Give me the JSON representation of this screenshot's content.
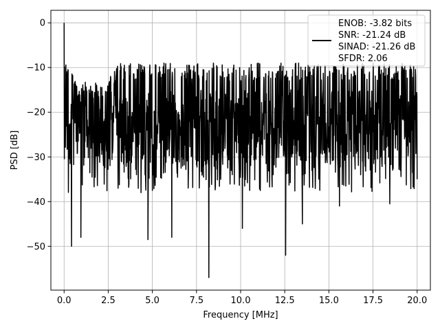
{
  "chart_data": {
    "type": "line",
    "title": "",
    "xlabel": "Frequency [MHz]",
    "ylabel": "PSD [dB]",
    "xlim": [
      -0.75,
      20.75
    ],
    "ylim": [
      -59.8,
      2.8
    ],
    "xticks": [
      0.0,
      2.5,
      5.0,
      7.5,
      10.0,
      12.5,
      15.0,
      17.5,
      20.0
    ],
    "xtick_labels": [
      "0.0",
      "2.5",
      "5.0",
      "7.5",
      "10.0",
      "12.5",
      "15.0",
      "17.5",
      "20.0"
    ],
    "yticks": [
      0,
      -10,
      -20,
      -30,
      -40,
      -50
    ],
    "ytick_labels": [
      "0",
      "−10",
      "−20",
      "−30",
      "−40",
      "−50"
    ],
    "grid": true,
    "legend": {
      "placement": "upper right",
      "entries": [
        "ENOB: -3.82 bits",
        "SNR: -21.24 dB",
        "SINAD: -21.26 dB",
        "SFDR: 2.06"
      ]
    },
    "series": [
      {
        "color": "#000000",
        "x_range": [
          0.0,
          20.0
        ],
        "noise_band": {
          "upper_envelope": {
            "x": [
              0.0,
              1.0,
              2.5,
              3.0,
              20.0
            ],
            "y": [
              -9,
              -13,
              -13,
              -9,
              -9
            ]
          },
          "typical_range": [
            -32,
            -12
          ]
        },
        "peaks": [
          {
            "x": 0.0,
            "y": 0.0
          }
        ],
        "dips": [
          {
            "x": 0.42,
            "y": -50
          },
          {
            "x": 0.95,
            "y": -48
          },
          {
            "x": 4.75,
            "y": -48.5
          },
          {
            "x": 6.1,
            "y": -48
          },
          {
            "x": 8.2,
            "y": -57
          },
          {
            "x": 10.1,
            "y": -46
          },
          {
            "x": 12.55,
            "y": -52
          },
          {
            "x": 13.5,
            "y": -45
          },
          {
            "x": 15.6,
            "y": -41
          },
          {
            "x": 18.45,
            "y": -40.5
          }
        ]
      }
    ]
  }
}
